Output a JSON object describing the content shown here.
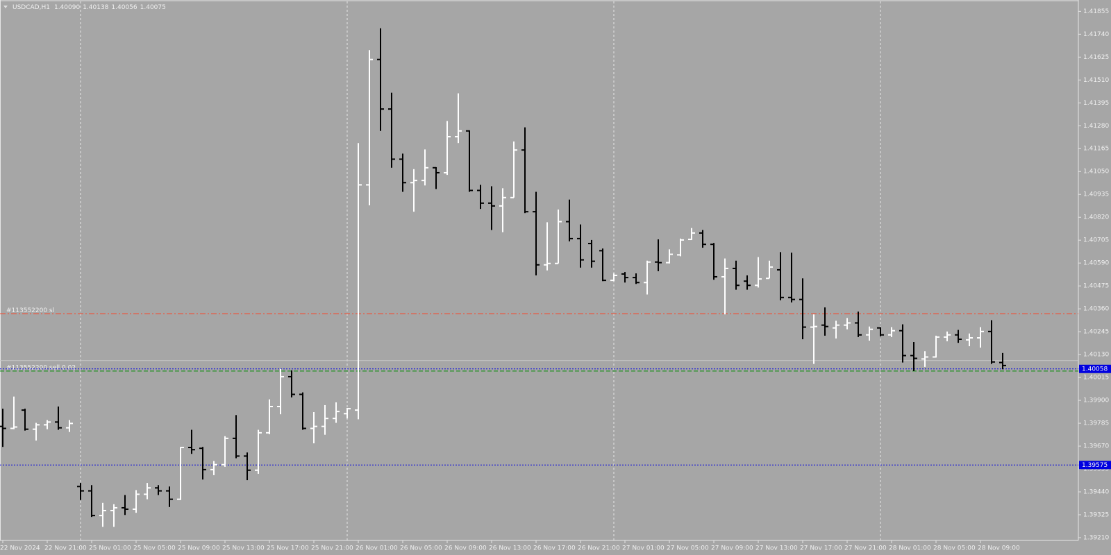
{
  "chart_data": {
    "type": "ohlc",
    "background": "#a6a6a6",
    "up_color": "#ffffff",
    "down_color": "#000000",
    "last_bar_labels": [
      "1.40090",
      "1.40138",
      "1.40056",
      "1.40075"
    ],
    "ylim": [
      1.39196,
      1.41905
    ],
    "yticks": [
      1.41855,
      {
        "value": 1.4174,
        "label": "1.41740"
      },
      1.41625,
      {
        "value": 1.4151,
        "label": "1.41510"
      },
      1.41395,
      {
        "value": 1.4128,
        "label": "1.41280"
      },
      1.41165,
      {
        "value": 1.4105,
        "label": "1.41050"
      },
      1.40935,
      {
        "value": 1.4082,
        "label": "1.40820"
      },
      1.40705,
      {
        "value": 1.4059,
        "label": "1.40590"
      },
      1.40475,
      {
        "value": 1.4036,
        "label": "1.40360"
      },
      1.40245,
      {
        "value": 1.4013,
        "label": "1.40130"
      },
      1.40015,
      {
        "value": 1.399,
        "label": "1.39900"
      },
      1.39785,
      {
        "value": 1.3967,
        "label": "1.39670"
      },
      1.39555,
      {
        "value": 1.3944,
        "label": "1.39440"
      },
      1.39325,
      {
        "value": 1.3921,
        "label": "1.39210"
      }
    ],
    "categories": [
      "22 Nov 2024",
      null,
      null,
      null,
      "22 Nov 21:00",
      null,
      null,
      null,
      "25 Nov 01:00",
      null,
      null,
      null,
      "25 Nov 05:00",
      null,
      null,
      null,
      "25 Nov 09:00",
      null,
      null,
      null,
      "25 Nov 13:00",
      null,
      null,
      null,
      "25 Nov 17:00",
      null,
      null,
      null,
      "25 Nov 21:00",
      null,
      null,
      null,
      "26 Nov 01:00",
      null,
      null,
      null,
      "26 Nov 05:00",
      null,
      null,
      null,
      "26 Nov 09:00",
      null,
      null,
      null,
      "26 Nov 13:00",
      null,
      null,
      null,
      "26 Nov 17:00",
      null,
      null,
      null,
      "26 Nov 21:00",
      null,
      null,
      null,
      "27 Nov 01:00",
      null,
      null,
      null,
      "27 Nov 05:00",
      null,
      null,
      null,
      "27 Nov 09:00",
      null,
      null,
      null,
      "27 Nov 13:00",
      null,
      null,
      null,
      "27 Nov 17:00",
      null,
      null,
      null,
      "27 Nov 21:00",
      null,
      null,
      null,
      "28 Nov 01:00",
      null,
      null,
      null,
      "28 Nov 05:00",
      null,
      null,
      null,
      "28 Nov 09:00",
      null,
      null
    ],
    "series": [
      {
        "name": "USDCAD,H1",
        "values": [
          [
            1.39769,
            1.39858,
            1.39666,
            1.39759
          ],
          [
            1.39759,
            1.39919,
            1.39755,
            1.39766
          ],
          [
            1.39851,
            1.39858,
            1.39748,
            1.39755
          ],
          [
            1.39755,
            1.39787,
            1.39698,
            1.39777
          ],
          [
            1.39777,
            1.39801,
            1.39755,
            1.39791
          ],
          [
            1.39791,
            1.39869,
            1.39752,
            1.39762
          ],
          [
            1.39762,
            1.39801,
            1.39741,
            1.39784
          ],
          [
            1.39467,
            1.39485,
            1.39399,
            1.39445
          ],
          [
            1.39445,
            1.39474,
            1.39314,
            1.39321
          ],
          [
            1.39321,
            1.39385,
            1.39264,
            1.39346
          ],
          [
            1.39346,
            1.39378,
            1.39264,
            1.3936
          ],
          [
            1.3936,
            1.39424,
            1.39324,
            1.39353
          ],
          [
            1.39353,
            1.39449,
            1.39335,
            1.39428
          ],
          [
            1.39428,
            1.39485,
            1.39403,
            1.3946
          ],
          [
            1.3946,
            1.39474,
            1.39424,
            1.39445
          ],
          [
            1.39445,
            1.39467,
            1.39364,
            1.39403
          ],
          [
            1.39403,
            1.39666,
            1.39399,
            1.39663
          ],
          [
            1.39663,
            1.39752,
            1.39631,
            1.39652
          ],
          [
            1.39659,
            1.39666,
            1.39502,
            1.39552
          ],
          [
            1.39552,
            1.39595,
            1.39524,
            1.39577
          ],
          [
            1.39577,
            1.3972,
            1.39566,
            1.39709
          ],
          [
            1.39709,
            1.39826,
            1.39609,
            1.3962
          ],
          [
            1.3962,
            1.39638,
            1.39499,
            1.39549
          ],
          [
            1.39549,
            1.39752,
            1.39531,
            1.39737
          ],
          [
            1.39737,
            1.39905,
            1.3973,
            1.39869
          ],
          [
            1.39869,
            1.40058,
            1.3983,
            1.40019
          ],
          [
            1.40019,
            1.40051,
            1.39915,
            1.3993
          ],
          [
            1.3993,
            1.3994,
            1.39752,
            1.39759
          ],
          [
            1.39759,
            1.39841,
            1.39684,
            1.39769
          ],
          [
            1.39769,
            1.39876,
            1.39727,
            1.39809
          ],
          [
            1.39809,
            1.3989,
            1.39787,
            1.39844
          ],
          [
            1.39833,
            1.39862,
            1.39809,
            1.39858
          ],
          [
            1.39851,
            1.41193,
            1.39805,
            1.40983
          ],
          [
            1.40983,
            1.4166,
            1.4088,
            1.41613
          ],
          [
            1.41613,
            1.4177,
            1.41254,
            1.41364
          ],
          [
            1.41364,
            1.41446,
            1.41069,
            1.41112
          ],
          [
            1.41112,
            1.4114,
            1.40948,
            1.40994
          ],
          [
            1.40994,
            1.41062,
            1.40848,
            1.41005
          ],
          [
            1.41005,
            1.41161,
            1.4098,
            1.41069
          ],
          [
            1.41069,
            1.41072,
            1.40962,
            1.41044
          ],
          [
            1.41044,
            1.41304,
            1.41033,
            1.41225
          ],
          [
            1.41225,
            1.41443,
            1.41193,
            1.41254
          ],
          [
            1.41254,
            1.41257,
            1.40948,
            1.40955
          ],
          [
            1.40955,
            1.40983,
            1.40862,
            1.40891
          ],
          [
            1.40891,
            1.40976,
            1.40756,
            1.40877
          ],
          [
            1.40877,
            1.40966,
            1.40745,
            1.40919
          ],
          [
            1.40919,
            1.41201,
            1.40919,
            1.41158
          ],
          [
            1.41158,
            1.41272,
            1.40841,
            1.40848
          ],
          [
            1.40848,
            1.40948,
            1.40528,
            1.40581
          ],
          [
            1.40581,
            1.40795,
            1.40553,
            1.40588
          ],
          [
            1.40588,
            1.40859,
            1.40588,
            1.40798
          ],
          [
            1.40798,
            1.40909,
            1.40699,
            1.40713
          ],
          [
            1.40713,
            1.40784,
            1.40567,
            1.40606
          ],
          [
            1.40688,
            1.40706,
            1.40567,
            1.40599
          ],
          [
            1.40652,
            1.40663,
            1.40499,
            1.40503
          ],
          [
            1.40503,
            1.40538,
            1.40499,
            1.40528
          ],
          [
            1.40535,
            1.40545,
            1.40492,
            1.40517
          ],
          [
            1.40517,
            1.40538,
            1.40485,
            1.40492
          ],
          [
            1.40492,
            1.40602,
            1.40432,
            1.40595
          ],
          [
            1.40595,
            1.40709,
            1.40549,
            1.40592
          ],
          [
            1.40592,
            1.40659,
            1.40588,
            1.40634
          ],
          [
            1.40631,
            1.40713,
            1.40624,
            1.40706
          ],
          [
            1.40709,
            1.40766,
            1.40706,
            1.40741
          ],
          [
            1.40741,
            1.40756,
            1.40667,
            1.40684
          ],
          [
            1.40684,
            1.40691,
            1.40506,
            1.40521
          ],
          [
            1.40521,
            1.40613,
            1.40332,
            1.40563
          ],
          [
            1.40563,
            1.40602,
            1.40456,
            1.40478
          ],
          [
            1.40499,
            1.40528,
            1.40456,
            1.40478
          ],
          [
            1.40478,
            1.4062,
            1.40467,
            1.4051
          ],
          [
            1.40513,
            1.40602,
            1.40513,
            1.4057
          ],
          [
            1.40556,
            1.40645,
            1.40403,
            1.40417
          ],
          [
            1.40417,
            1.40642,
            1.40392,
            1.40407
          ],
          [
            1.40407,
            1.40513,
            1.40207,
            1.40268
          ],
          [
            1.40268,
            1.40332,
            1.40083,
            1.40271
          ],
          [
            1.40278,
            1.40367,
            1.40225,
            1.40271
          ],
          [
            1.40264,
            1.403,
            1.40211,
            1.40278
          ],
          [
            1.40278,
            1.40314,
            1.40257,
            1.40289
          ],
          [
            1.40289,
            1.40346,
            1.40218,
            1.40229
          ],
          [
            1.40229,
            1.40271,
            1.402,
            1.40257
          ],
          [
            1.40264,
            1.40268,
            1.40222,
            1.40229
          ],
          [
            1.40229,
            1.40268,
            1.40218,
            1.4025
          ],
          [
            1.4025,
            1.40282,
            1.4009,
            1.40125
          ],
          [
            1.40125,
            1.40193,
            1.40047,
            1.40111
          ],
          [
            1.40108,
            1.40147,
            1.40068,
            1.40118
          ],
          [
            1.40118,
            1.40225,
            1.40115,
            1.40218
          ],
          [
            1.40218,
            1.40246,
            1.40197,
            1.40229
          ],
          [
            1.40229,
            1.40254,
            1.40189,
            1.40207
          ],
          [
            1.40204,
            1.40236,
            1.40172,
            1.40214
          ],
          [
            1.40214,
            1.40268,
            1.40165,
            1.40246
          ],
          [
            1.40246,
            1.40303,
            1.40083,
            1.40093
          ],
          [
            1.4009,
            1.40138,
            1.40056,
            1.40075
          ]
        ]
      }
    ],
    "lines": [
      {
        "label": "#113552200 sl",
        "value": 1.40335,
        "color": "#ff3c1e",
        "style": "dashdot"
      },
      {
        "value": 1.401,
        "color": "#c8c8c8",
        "style": "solid"
      },
      {
        "label": "#113552200 sell 0.02",
        "value": 1.40047,
        "color": "#008c00",
        "style": "dashed"
      },
      {
        "value": 1.40058,
        "color": "#0000e0",
        "style": "dotted",
        "price_box": true
      },
      {
        "value": 1.39575,
        "color": "#0000e0",
        "style": "dotted",
        "price_box": true
      }
    ]
  }
}
